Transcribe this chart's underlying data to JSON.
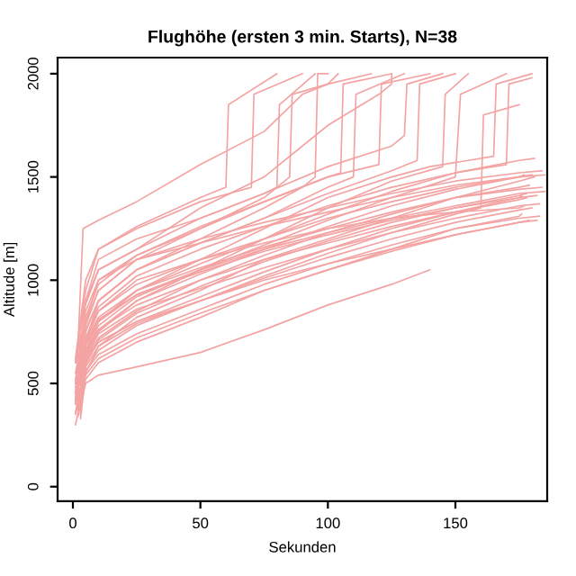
{
  "chart_data": {
    "type": "line",
    "title": "Flughöhe (ersten 3 min. Starts), N=38",
    "xlabel": "Sekunden",
    "ylabel": "Altitude [m]",
    "xlim": [
      -6,
      186
    ],
    "ylim": [
      -70,
      2078
    ],
    "xticks": [
      0,
      50,
      100,
      150
    ],
    "yticks": [
      0,
      500,
      1000,
      1500,
      2000
    ],
    "grid": false,
    "legend": false,
    "line_style": "solid",
    "marker": "none",
    "series": [
      {
        "color": "#f4a3a3",
        "x": [
          1,
          4,
          10,
          25,
          50,
          75,
          90,
          100,
          104
        ],
        "values": [
          400,
          1250,
          1290,
          1380,
          1560,
          1720,
          1900,
          1950,
          2000
        ]
      },
      {
        "color": "#f4a3a3",
        "x": [
          2,
          4,
          10,
          25,
          50,
          75,
          100,
          120,
          125,
          125
        ],
        "values": [
          450,
          850,
          1050,
          1150,
          1350,
          1500,
          1750,
          1900,
          1950,
          2000
        ]
      },
      {
        "color": "#f4a3a3",
        "x": [
          1,
          5,
          10,
          25,
          50,
          75,
          85,
          86,
          100,
          117
        ],
        "values": [
          500,
          800,
          1000,
          1120,
          1250,
          1400,
          1500,
          1900,
          1950,
          2000
        ]
      },
      {
        "color": "#f4a3a3",
        "x": [
          3,
          5,
          10,
          25,
          50,
          75,
          90,
          95,
          96,
          100
        ],
        "values": [
          350,
          700,
          900,
          1050,
          1200,
          1350,
          1450,
          1500,
          2000,
          2000
        ]
      },
      {
        "color": "#f4a3a3",
        "x": [
          1,
          5,
          10,
          25,
          50,
          75,
          100,
          125,
          140,
          165,
          166,
          180
        ],
        "values": [
          420,
          650,
          800,
          950,
          1100,
          1250,
          1400,
          1500,
          1550,
          1600,
          1950,
          2000
        ]
      },
      {
        "color": "#f4a3a3",
        "x": [
          2,
          5,
          10,
          25,
          50,
          75,
          100,
          125,
          145,
          146,
          155
        ],
        "values": [
          380,
          600,
          750,
          900,
          1050,
          1200,
          1350,
          1480,
          1550,
          1900,
          2000
        ]
      },
      {
        "color": "#f4a3a3",
        "x": [
          1,
          5,
          10,
          25,
          50,
          75,
          100,
          125,
          130,
          131,
          145
        ],
        "values": [
          500,
          900,
          1100,
          1200,
          1300,
          1420,
          1550,
          1650,
          1700,
          1950,
          2000
        ]
      },
      {
        "color": "#f4a3a3",
        "x": [
          3,
          5,
          10,
          25,
          50,
          75,
          100,
          125,
          150,
          175,
          181
        ],
        "values": [
          330,
          550,
          680,
          820,
          950,
          1100,
          1200,
          1300,
          1400,
          1480,
          1500
        ]
      },
      {
        "color": "#f4a3a3",
        "x": [
          1,
          5,
          10,
          25,
          50,
          75,
          100,
          125,
          150,
          175,
          183
        ],
        "values": [
          300,
          520,
          600,
          700,
          820,
          950,
          1050,
          1150,
          1250,
          1300,
          1310
        ]
      },
      {
        "color": "#f4a3a3",
        "x": [
          2,
          5,
          10,
          25,
          50,
          75,
          100,
          125,
          140
        ],
        "values": [
          340,
          500,
          540,
          580,
          650,
          760,
          880,
          980,
          1050
        ]
      },
      {
        "color": "#f4a3a3",
        "x": [
          1,
          5,
          10,
          25,
          50,
          75,
          100,
          125,
          150,
          175,
          177
        ],
        "values": [
          450,
          700,
          850,
          1000,
          1100,
          1180,
          1250,
          1300,
          1330,
          1350,
          1360
        ]
      },
      {
        "color": "#f4a3a3",
        "x": [
          3,
          5,
          10,
          25,
          50,
          75,
          100,
          125,
          150,
          175,
          182
        ],
        "values": [
          400,
          600,
          700,
          800,
          900,
          1000,
          1080,
          1150,
          1220,
          1280,
          1290
        ]
      },
      {
        "color": "#f4a3a3",
        "x": [
          1,
          5,
          10,
          25,
          50,
          75,
          100,
          125,
          150,
          175,
          184
        ],
        "values": [
          550,
          800,
          950,
          1100,
          1200,
          1280,
          1350,
          1420,
          1480,
          1520,
          1530
        ]
      },
      {
        "color": "#f4a3a3",
        "x": [
          2,
          5,
          10,
          25,
          50,
          75,
          100,
          110,
          111,
          130
        ],
        "values": [
          480,
          750,
          900,
          1050,
          1180,
          1300,
          1450,
          1500,
          1900,
          2000
        ]
      },
      {
        "color": "#f4a3a3",
        "x": [
          1,
          5,
          10,
          25,
          50,
          75,
          100,
          125,
          150,
          175,
          179
        ],
        "values": [
          360,
          600,
          720,
          850,
          1000,
          1120,
          1230,
          1320,
          1400,
          1450,
          1460
        ]
      },
      {
        "color": "#f4a3a3",
        "x": [
          3,
          5,
          10,
          25,
          50,
          75,
          100,
          125,
          150,
          175,
          185
        ],
        "values": [
          420,
          680,
          800,
          930,
          1050,
          1150,
          1230,
          1300,
          1360,
          1420,
          1430
        ]
      },
      {
        "color": "#f4a3a3",
        "x": [
          1,
          5,
          10,
          25,
          50,
          70,
          71,
          90
        ],
        "values": [
          600,
          950,
          1150,
          1250,
          1380,
          1450,
          1900,
          2000
        ]
      },
      {
        "color": "#f4a3a3",
        "x": [
          2,
          5,
          10,
          25,
          50,
          75,
          100,
          125,
          150,
          160,
          161,
          175
        ],
        "values": [
          380,
          560,
          660,
          780,
          900,
          1020,
          1130,
          1230,
          1320,
          1350,
          1800,
          1850
        ]
      },
      {
        "color": "#f4a3a3",
        "x": [
          1,
          5,
          10,
          25,
          50,
          75,
          100,
          125,
          150,
          175,
          178
        ],
        "values": [
          450,
          650,
          760,
          880,
          1000,
          1100,
          1180,
          1260,
          1330,
          1390,
          1400
        ]
      },
      {
        "color": "#f4a3a3",
        "x": [
          3,
          5,
          10,
          25,
          50,
          75,
          100,
          125,
          150,
          175,
          180
        ],
        "values": [
          500,
          720,
          850,
          980,
          1100,
          1200,
          1300,
          1380,
          1450,
          1500,
          1510
        ]
      },
      {
        "color": "#f4a3a3",
        "x": [
          1,
          5,
          10,
          25,
          50,
          75,
          100,
          125,
          150,
          152,
          170
        ],
        "values": [
          420,
          640,
          780,
          920,
          1050,
          1170,
          1290,
          1400,
          1500,
          1900,
          2000
        ]
      },
      {
        "color": "#f4a3a3",
        "x": [
          2,
          5,
          10,
          25,
          50,
          75,
          80,
          81,
          95
        ],
        "values": [
          550,
          900,
          1050,
          1150,
          1300,
          1420,
          1450,
          1850,
          2000
        ]
      },
      {
        "color": "#f4a3a3",
        "x": [
          1,
          5,
          10,
          25,
          50,
          75,
          100,
          125,
          150,
          175,
          176
        ],
        "values": [
          400,
          560,
          640,
          740,
          860,
          980,
          1080,
          1170,
          1250,
          1310,
          1320
        ]
      },
      {
        "color": "#f4a3a3",
        "x": [
          3,
          5,
          10,
          25,
          50,
          75,
          100,
          125,
          150,
          175,
          181
        ],
        "values": [
          470,
          720,
          870,
          1020,
          1150,
          1260,
          1360,
          1450,
          1520,
          1580,
          1590
        ]
      },
      {
        "color": "#f4a3a3",
        "x": [
          1,
          5,
          10,
          25,
          50,
          75,
          100,
          120,
          121,
          140
        ],
        "values": [
          520,
          780,
          950,
          1100,
          1250,
          1380,
          1500,
          1560,
          1950,
          2000
        ]
      },
      {
        "color": "#f4a3a3",
        "x": [
          2,
          5,
          10,
          25,
          50,
          75,
          100,
          125,
          150,
          175,
          183
        ],
        "values": [
          380,
          620,
          740,
          860,
          960,
          1060,
          1150,
          1230,
          1300,
          1360,
          1370
        ]
      },
      {
        "color": "#f4a3a3",
        "x": [
          1,
          5,
          10,
          25,
          50,
          75,
          100,
          125,
          150,
          175,
          177
        ],
        "values": [
          600,
          850,
          1000,
          1100,
          1180,
          1260,
          1330,
          1400,
          1460,
          1500,
          1510
        ]
      },
      {
        "color": "#f4a3a3",
        "x": [
          3,
          5,
          10,
          25,
          50,
          75,
          100,
          125,
          150,
          170,
          171,
          180
        ],
        "values": [
          440,
          660,
          800,
          950,
          1080,
          1200,
          1320,
          1430,
          1520,
          1560,
          1950,
          1980
        ]
      },
      {
        "color": "#f4a3a3",
        "x": [
          1,
          5,
          10,
          25,
          50,
          75,
          100,
          125,
          150,
          175,
          179
        ],
        "values": [
          350,
          540,
          620,
          720,
          840,
          950,
          1050,
          1140,
          1220,
          1280,
          1290
        ]
      },
      {
        "color": "#f4a3a3",
        "x": [
          2,
          5,
          10,
          25,
          50,
          75,
          100,
          105,
          106,
          125
        ],
        "values": [
          500,
          820,
          980,
          1120,
          1260,
          1380,
          1500,
          1520,
          1950,
          2000
        ]
      },
      {
        "color": "#f4a3a3",
        "x": [
          1,
          5,
          10,
          25,
          50,
          75,
          100,
          125,
          150,
          175,
          184
        ],
        "values": [
          480,
          700,
          820,
          950,
          1060,
          1160,
          1250,
          1330,
          1400,
          1440,
          1450
        ]
      },
      {
        "color": "#f4a3a3",
        "x": [
          3,
          5,
          10,
          25,
          50,
          75,
          100,
          125,
          150,
          175,
          182
        ],
        "values": [
          430,
          610,
          700,
          800,
          920,
          1040,
          1150,
          1250,
          1330,
          1400,
          1410
        ]
      },
      {
        "color": "#f4a3a3",
        "x": [
          1,
          5,
          10,
          25,
          50,
          60,
          61,
          80
        ],
        "values": [
          620,
          1000,
          1150,
          1260,
          1400,
          1450,
          1850,
          2000
        ]
      },
      {
        "color": "#f4a3a3",
        "x": [
          2,
          5,
          10,
          25,
          50,
          75,
          100,
          125,
          150,
          175,
          180
        ],
        "values": [
          390,
          580,
          680,
          790,
          900,
          1010,
          1110,
          1200,
          1280,
          1340,
          1350
        ]
      },
      {
        "color": "#f4a3a3",
        "x": [
          1,
          5,
          10,
          25,
          50,
          75,
          100,
          125,
          150,
          175,
          176
        ],
        "values": [
          460,
          690,
          810,
          930,
          1040,
          1140,
          1220,
          1290,
          1350,
          1400,
          1410
        ]
      },
      {
        "color": "#f4a3a3",
        "x": [
          3,
          5,
          10,
          25,
          50,
          75,
          100,
          125,
          135,
          136,
          150
        ],
        "values": [
          510,
          760,
          900,
          1050,
          1180,
          1300,
          1420,
          1530,
          1580,
          1950,
          2000
        ]
      },
      {
        "color": "#f4a3a3",
        "x": [
          1,
          5,
          10,
          25,
          50,
          75,
          100,
          125,
          150,
          175,
          185
        ],
        "values": [
          410,
          630,
          760,
          900,
          1030,
          1150,
          1260,
          1360,
          1440,
          1500,
          1510
        ]
      },
      {
        "color": "#f4a3a3",
        "x": [
          2,
          5,
          10,
          25,
          50,
          75,
          100,
          125,
          150,
          175,
          178
        ],
        "values": [
          370,
          590,
          710,
          840,
          970,
          1090,
          1190,
          1280,
          1350,
          1410,
          1420
        ]
      }
    ]
  }
}
